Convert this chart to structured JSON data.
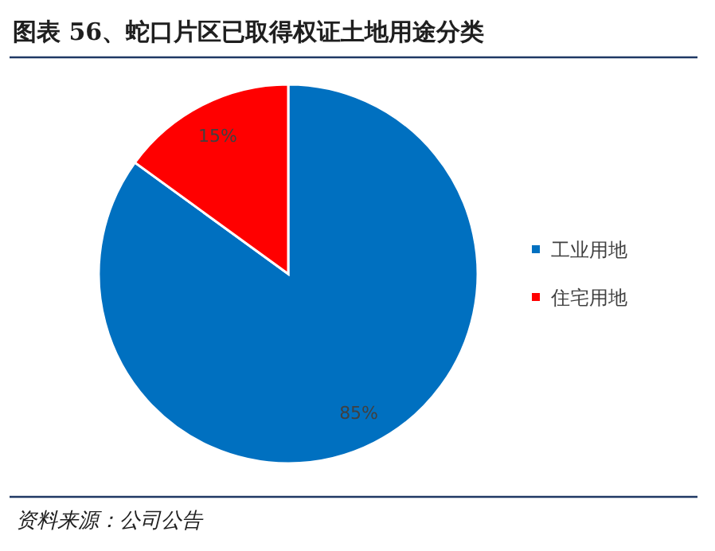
{
  "chart_data": {
    "type": "pie",
    "title": "图表 56、蛇口片区已取得权证土地用途分类",
    "categories": [
      "工业用地",
      "住宅用地"
    ],
    "values": [
      85,
      15
    ],
    "colors": [
      "#0070c0",
      "#ff0000"
    ],
    "value_labels": [
      "85%",
      "15%"
    ],
    "legend": "right",
    "annotations": [
      "资料来源：公司公告"
    ]
  }
}
